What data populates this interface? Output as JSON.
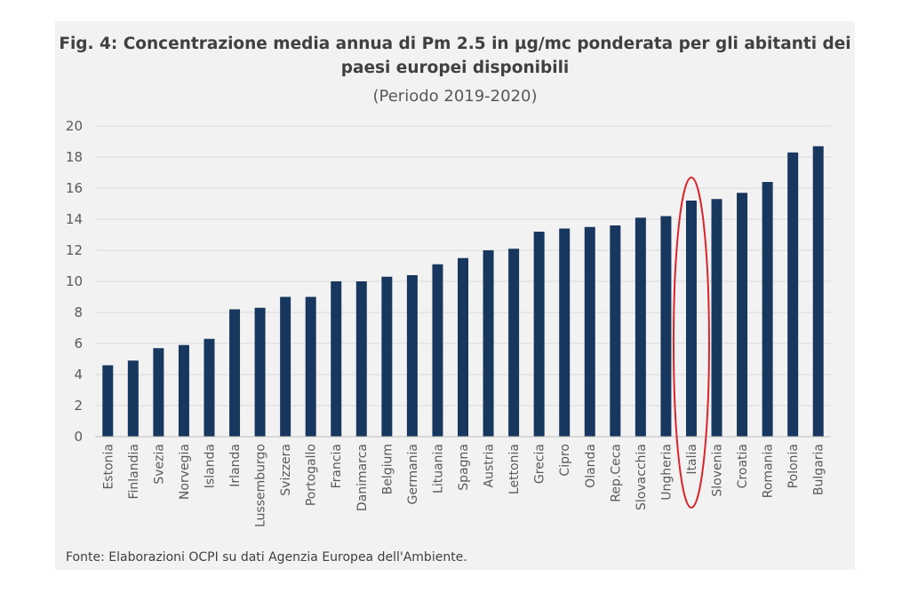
{
  "chart_data": {
    "type": "bar",
    "title": "Fig. 4: Concentrazione media annua di Pm 2.5 in µg/mc ponderata per gli abitanti dei paesi europei disponibili",
    "subtitle": "(Periodo 2019-2020)",
    "source": "Fonte: Elaborazioni OCPI su dati Agenzia Europea dell'Ambiente.",
    "categories": [
      "Estonia",
      "Finlandia",
      "Svezia",
      "Norvegia",
      "Islanda",
      "Irlanda",
      "Lussemburgo",
      "Svizzera",
      "Portogallo",
      "Francia",
      "Danimarca",
      "Belgium",
      "Germania",
      "Lituania",
      "Spagna",
      "Austria",
      "Lettonia",
      "Grecia",
      "Cipro",
      "Olanda",
      "Rep.Ceca",
      "Slovacchia",
      "Ungheria",
      "Italia",
      "Slovenia",
      "Croatia",
      "Romania",
      "Polonia",
      "Bulgaria"
    ],
    "values": [
      4.6,
      4.9,
      5.7,
      5.9,
      6.3,
      8.2,
      8.3,
      9.0,
      9.0,
      10.0,
      10.0,
      10.3,
      10.4,
      11.1,
      11.5,
      12.0,
      12.1,
      13.2,
      13.4,
      13.5,
      13.6,
      14.1,
      14.2,
      15.2,
      15.3,
      15.7,
      16.4,
      18.3,
      18.7
    ],
    "ylim": [
      0,
      20
    ],
    "yticks": [
      "0",
      "2",
      "4",
      "6",
      "8",
      "10",
      "12",
      "14",
      "16",
      "18",
      "20"
    ],
    "highlight": "Italia",
    "bar_color": "#17375e",
    "highlight_color": "#d9262c",
    "grid": true,
    "xlabel": "",
    "ylabel": ""
  }
}
